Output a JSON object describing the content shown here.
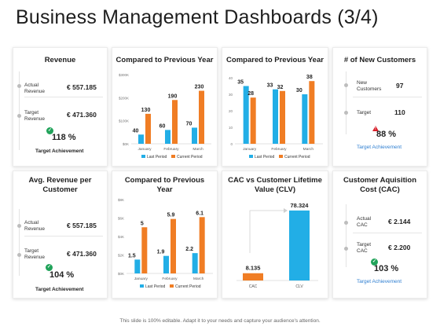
{
  "page": {
    "title": "Business Management Dashboards (3/4)",
    "footer": "This slide is 100% editable. Adapt it to your needs and capture your audience's attention."
  },
  "colors": {
    "orange": "#f07d24",
    "blue": "#22aee6",
    "green": "#21a35a",
    "red": "#d81f2a",
    "link_blue": "#2f7fd1"
  },
  "revenue": {
    "title": "Revenue",
    "actual_label_1": "Actual",
    "actual_label_2": "Revenue",
    "actual_value": "€ 557.185",
    "target_label_1": "Target",
    "target_label_2": "Revenue",
    "target_value": "€ 471.360",
    "percent": "118 %",
    "achievement_label": "Target Achievement"
  },
  "avg_revenue": {
    "title_1": "Avg. Revenue per",
    "title_2": "Customer",
    "actual_label_1": "Actual",
    "actual_label_2": "Revenue",
    "actual_value": "€ 557.185",
    "target_label_1": "Target",
    "target_label_2": "Revenue",
    "target_value": "€ 471.360",
    "percent": "104 %",
    "achievement_label": "Target Achievement"
  },
  "new_customers": {
    "title": "# of New Customers",
    "new_label_1": "New",
    "new_label_2": "Customers",
    "new_value": "97",
    "target_label": "Target",
    "target_value": "110",
    "percent": "88 %",
    "achievement_label": "Target Achievement"
  },
  "cac": {
    "title_1": "Customer Aquisition",
    "title_2": "Cost (CAC)",
    "actual_label_1": "Actual",
    "actual_label_2": "CAC",
    "actual_value": "€ 2.144",
    "target_label_1": "Target",
    "target_label_2": "CAC",
    "target_value": "€ 2.200",
    "percent": "103 %",
    "achievement_label": "Target Achievement"
  },
  "chart_data": [
    {
      "id": "compare1",
      "type": "bar",
      "title": "Compared to Previous Year",
      "categories": [
        "January",
        "February",
        "March"
      ],
      "series": [
        {
          "name": "Last Period",
          "values": [
            40,
            60,
            70
          ]
        },
        {
          "name": "Current Period",
          "values": [
            130,
            190,
            230
          ]
        }
      ],
      "ylim": [
        0,
        250
      ],
      "yticks": [
        "$0K",
        "$50K",
        "$100K",
        "$150K",
        "$200K",
        "$250K"
      ],
      "yticks_shown": [
        "$0K",
        "$100K",
        "$200K",
        "$300K"
      ],
      "legend": "bottom"
    },
    {
      "id": "compare2",
      "type": "bar",
      "title": "Compared to Previous Year",
      "categories": [
        "January",
        "February",
        "March"
      ],
      "series": [
        {
          "name": "Last Period",
          "values": [
            35,
            33,
            30
          ]
        },
        {
          "name": "Current Period",
          "values": [
            28,
            32,
            38
          ]
        }
      ],
      "ylim": [
        0,
        40
      ],
      "yticks": [
        "0",
        "10",
        "20",
        "30",
        "40"
      ],
      "legend": "bottom"
    },
    {
      "id": "compare3",
      "type": "bar",
      "title_1": "Compared to Previous",
      "title_2": "Year",
      "categories": [
        "January",
        "February",
        "March"
      ],
      "series": [
        {
          "name": "Last Period",
          "values": [
            1.5,
            1.9,
            2.2
          ]
        },
        {
          "name": "Current Period",
          "values": [
            5,
            5.9,
            6.1
          ]
        }
      ],
      "ylim": [
        0,
        8
      ],
      "yticks": [
        "$0K",
        "$2K",
        "$4K",
        "$6K",
        "$8K"
      ],
      "legend": "bottom"
    },
    {
      "id": "clv",
      "type": "bar",
      "title_1": "CAC vs Customer Lifetime",
      "title_2": "Value (CLV)",
      "categories": [
        "CAC",
        "CLV"
      ],
      "values": [
        8.135,
        78.324
      ],
      "value_labels": [
        "8.135",
        "78.324"
      ],
      "ylim": [
        0,
        80
      ]
    }
  ]
}
